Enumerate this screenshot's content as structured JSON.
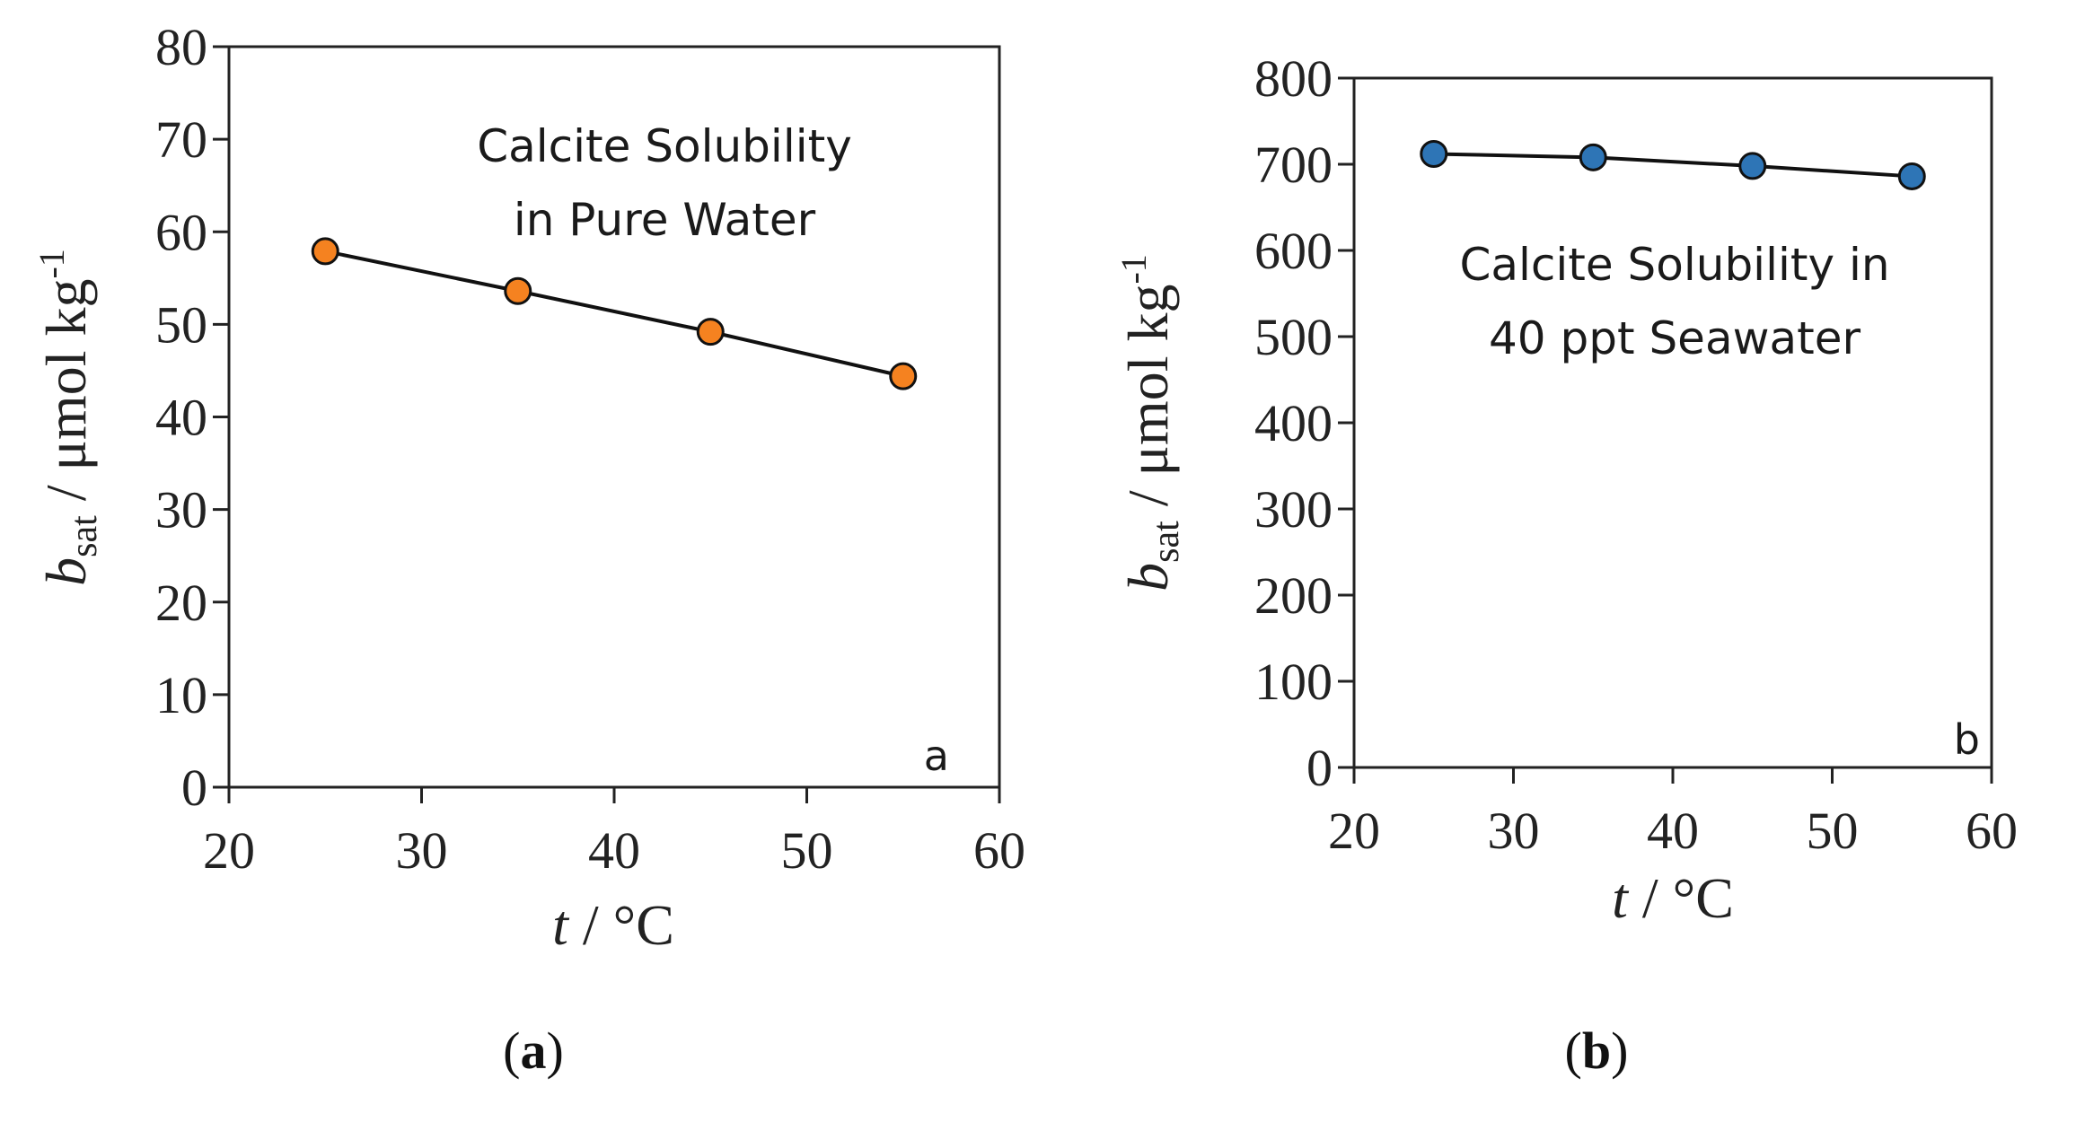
{
  "chart_data": [
    {
      "type": "line",
      "title": "",
      "panel_id": "a",
      "annotation": [
        "Calcite Solubility",
        "in Pure Water"
      ],
      "corner_label": "a",
      "xlabel": {
        "italic": "t",
        "rest": " / °C"
      },
      "ylabel": {
        "italic": "b",
        "sub": "sat",
        "rest": " / μmol kg",
        "sup": "-1"
      },
      "xlim": [
        20,
        60
      ],
      "ylim": [
        0,
        80
      ],
      "xticks": [
        20,
        30,
        40,
        50,
        60
      ],
      "yticks": [
        0,
        10,
        20,
        30,
        40,
        50,
        60,
        70,
        80
      ],
      "series": [
        {
          "name": "Pure Water",
          "x": [
            25,
            35,
            45,
            55
          ],
          "values": [
            57.9,
            53.6,
            49.2,
            44.4
          ],
          "color": "#F58220"
        }
      ],
      "caption": {
        "open": "(",
        "letter": "a",
        "close": ")"
      }
    },
    {
      "type": "line",
      "title": "",
      "panel_id": "b",
      "annotation": [
        "Calcite Solubility in",
        "40 ppt Seawater"
      ],
      "corner_label": "b",
      "xlabel": {
        "italic": "t",
        "rest": " / °C"
      },
      "ylabel": {
        "italic": "b",
        "sub": "sat",
        "rest": " / μmol kg",
        "sup": "-1"
      },
      "xlim": [
        20,
        60
      ],
      "ylim": [
        0,
        800
      ],
      "xticks": [
        20,
        30,
        40,
        50,
        60
      ],
      "yticks": [
        0,
        100,
        200,
        300,
        400,
        500,
        600,
        700,
        800
      ],
      "series": [
        {
          "name": "40 ppt Seawater",
          "x": [
            25,
            35,
            45,
            55
          ],
          "values": [
            712,
            708,
            698,
            686
          ],
          "color": "#2E75B6"
        }
      ],
      "caption": {
        "open": "(",
        "letter": "b",
        "close": ")"
      }
    }
  ]
}
